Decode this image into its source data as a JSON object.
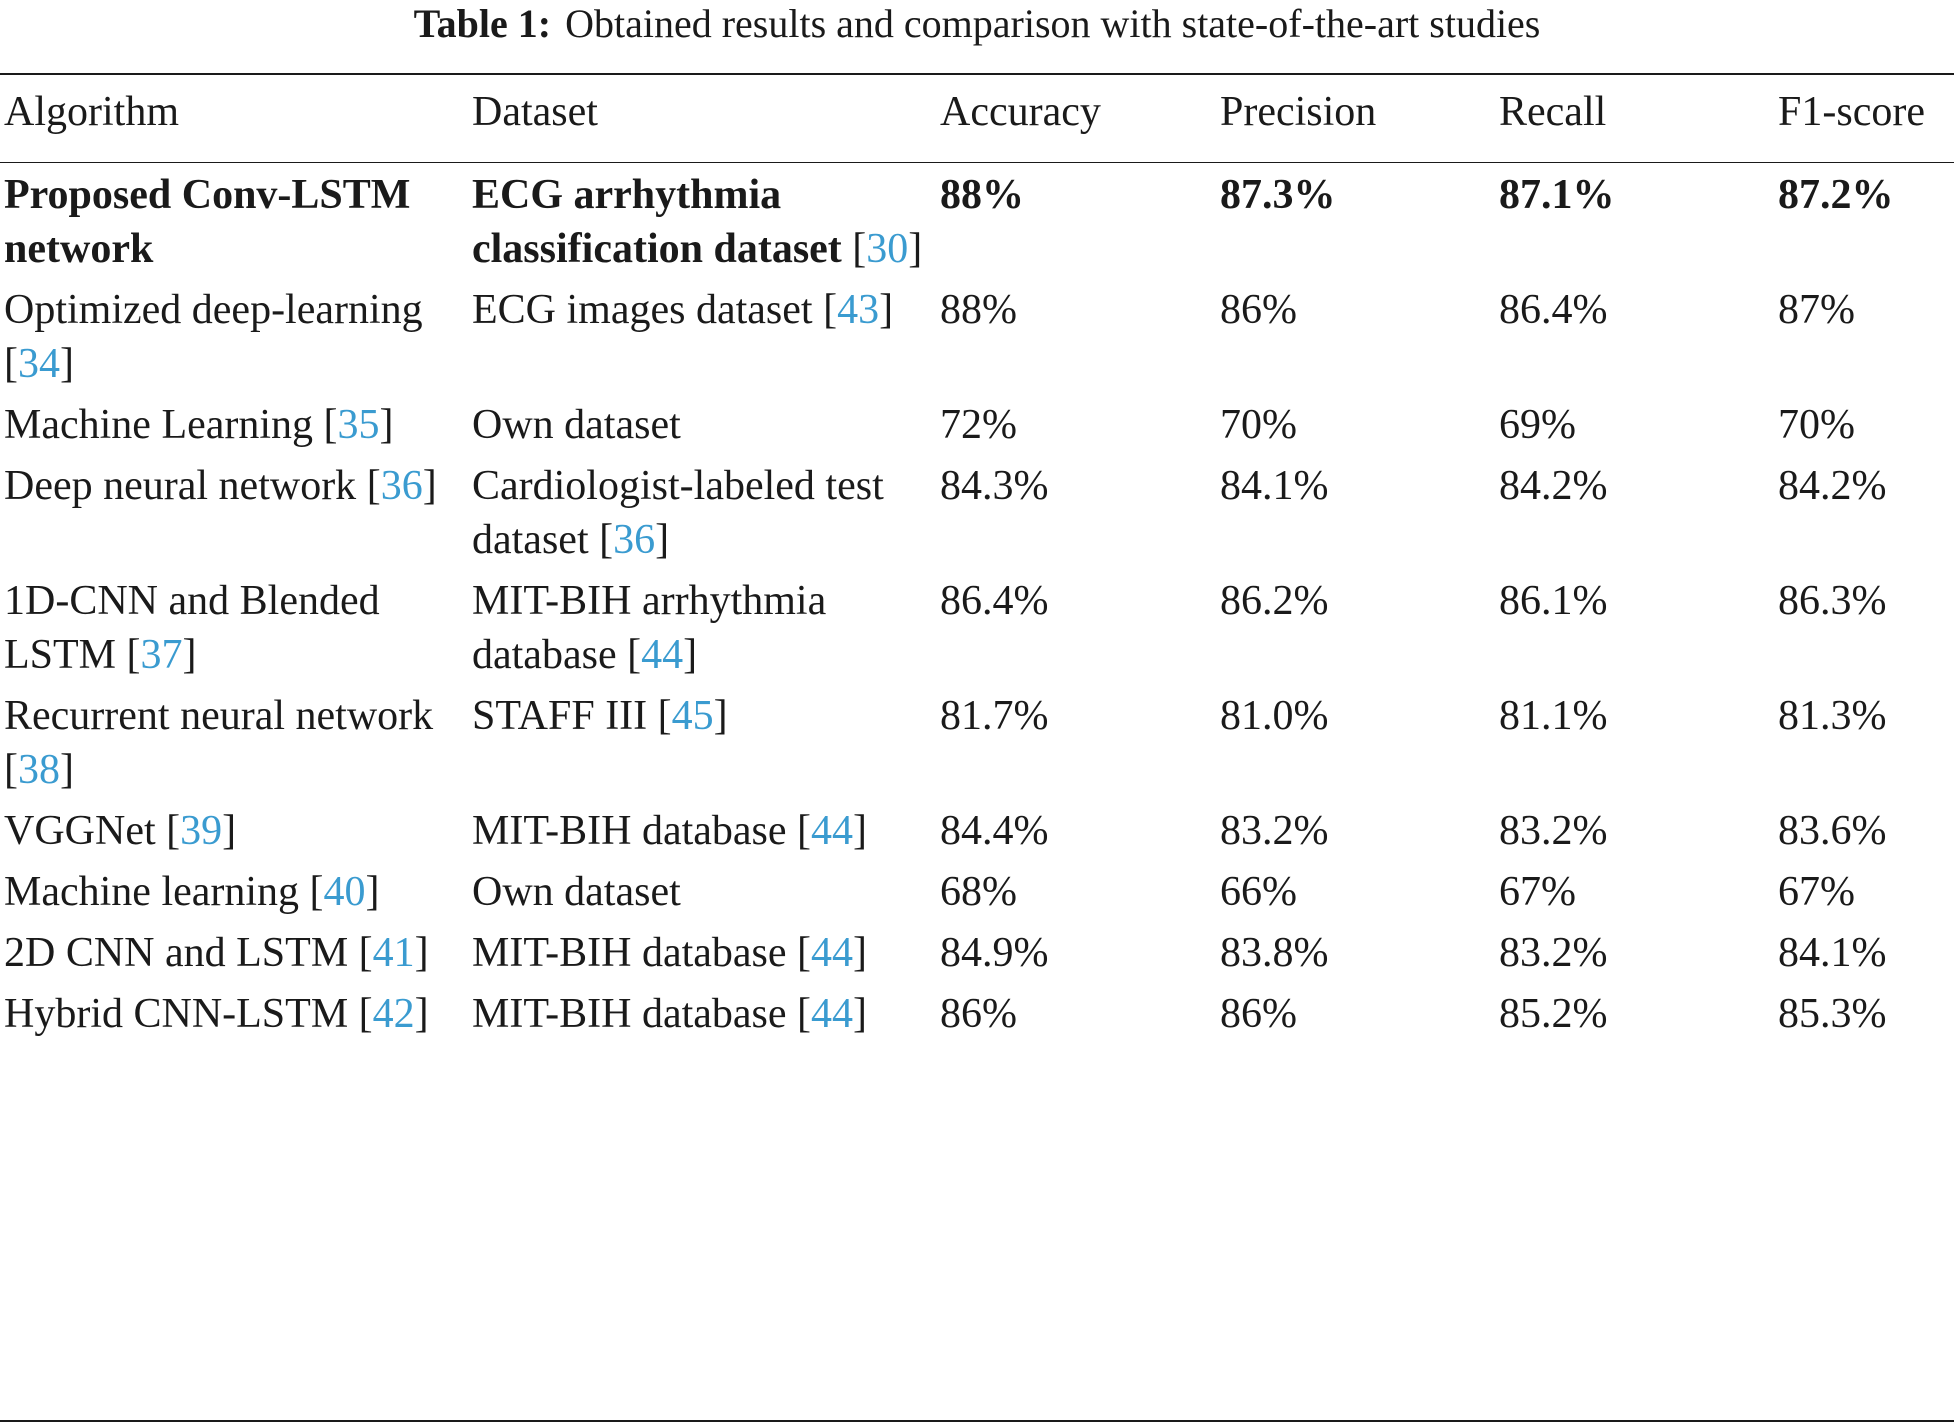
{
  "caption": {
    "label": "Table 1:",
    "text": "Obtained results and comparison with state-of-the-art studies"
  },
  "headers": [
    "Algorithm",
    "Dataset",
    "Accuracy",
    "Precision",
    "Recall",
    "F1-score"
  ],
  "rows": [
    {
      "algorithm": "Proposed Conv-LSTM network",
      "algorithm_ref": "",
      "dataset": "ECG arrhythmia classification dataset",
      "dataset_ref": "30",
      "accuracy": "88%",
      "precision": "87.3%",
      "recall": "87.1%",
      "f1": "87.2%"
    },
    {
      "algorithm": "Optimized deep-learning",
      "algorithm_ref": "34",
      "dataset": "ECG images dataset",
      "dataset_ref": "43",
      "accuracy": "88%",
      "precision": "86%",
      "recall": "86.4%",
      "f1": "87%"
    },
    {
      "algorithm": "Machine Learning",
      "algorithm_ref": "35",
      "dataset": "Own dataset",
      "dataset_ref": "",
      "accuracy": "72%",
      "precision": "70%",
      "recall": "69%",
      "f1": "70%"
    },
    {
      "algorithm": "Deep neural network",
      "algorithm_ref": "36",
      "dataset": "Cardiologist-labeled test dataset",
      "dataset_ref": "36",
      "accuracy": "84.3%",
      "precision": "84.1%",
      "recall": "84.2%",
      "f1": "84.2%"
    },
    {
      "algorithm": "1D-CNN and Blended LSTM",
      "algorithm_ref": "37",
      "dataset": "MIT-BIH arrhythmia database",
      "dataset_ref": "44",
      "accuracy": "86.4%",
      "precision": "86.2%",
      "recall": "86.1%",
      "f1": "86.3%"
    },
    {
      "algorithm": "Recurrent neural network",
      "algorithm_ref": "38",
      "dataset": "STAFF III",
      "dataset_ref": "45",
      "accuracy": "81.7%",
      "precision": "81.0%",
      "recall": "81.1%",
      "f1": "81.3%"
    },
    {
      "algorithm": "VGGNet",
      "algorithm_ref": "39",
      "dataset": "MIT-BIH database",
      "dataset_ref": "44",
      "accuracy": "84.4%",
      "precision": "83.2%",
      "recall": "83.2%",
      "f1": "83.6%"
    },
    {
      "algorithm": "Machine learning",
      "algorithm_ref": "40",
      "dataset": "Own dataset",
      "dataset_ref": "",
      "accuracy": "68%",
      "precision": "66%",
      "recall": "67%",
      "f1": "67%"
    },
    {
      "algorithm": "2D CNN and LSTM",
      "algorithm_ref": "41",
      "dataset": "MIT-BIH database",
      "dataset_ref": "44",
      "accuracy": "84.9%",
      "precision": "83.8%",
      "recall": "83.2%",
      "f1": "84.1%"
    },
    {
      "algorithm": "Hybrid CNN-LSTM",
      "algorithm_ref": "42",
      "dataset": "MIT-BIH database",
      "dataset_ref": "44",
      "accuracy": "86%",
      "precision": "86%",
      "recall": "85.2%",
      "f1": "85.3%"
    }
  ]
}
